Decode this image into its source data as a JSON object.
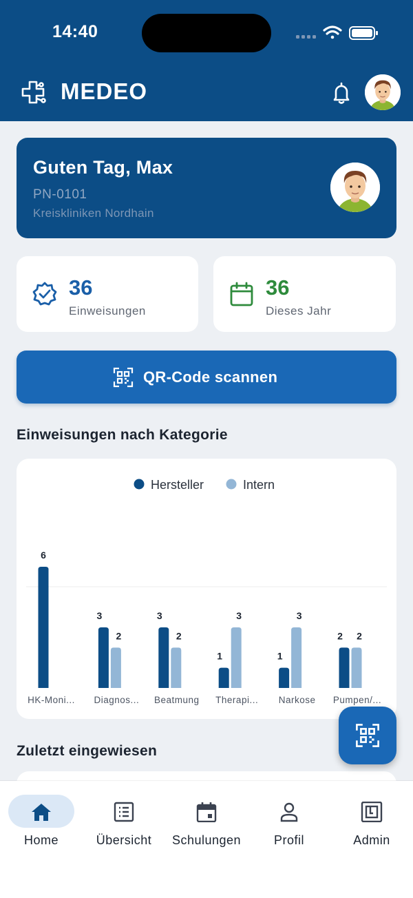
{
  "status_bar": {
    "time": "14:40"
  },
  "app": {
    "title": "MEDEO"
  },
  "greeting": {
    "title": "Guten Tag, Max",
    "person_id": "PN-0101",
    "organization": "Kreiskliniken Nordhain"
  },
  "stats": [
    {
      "value": "36",
      "label": "Einweisungen",
      "icon": "badge-check-icon",
      "color": "#1a5fa8"
    },
    {
      "value": "36",
      "label": "Dieses Jahr",
      "icon": "calendar-icon",
      "color": "#2e8b3c"
    }
  ],
  "qr_button": {
    "label": "QR-Code scannen"
  },
  "sections": {
    "chart_title": "Einweisungen nach Kategorie",
    "recent_title": "Zuletzt eingewiesen"
  },
  "chart_data": {
    "type": "bar",
    "categories": [
      "HK-Moni...",
      "Diagnos...",
      "Beatmung",
      "Therapi...",
      "Narkose",
      "Pumpen/..."
    ],
    "series": [
      {
        "name": "Hersteller",
        "color": "#0c4d86",
        "values": [
          6,
          3,
          3,
          1,
          1,
          2
        ]
      },
      {
        "name": "Intern",
        "color": "#93b6d6",
        "values": [
          0,
          2,
          2,
          3,
          3,
          2
        ]
      }
    ],
    "ylim": [
      0,
      6
    ],
    "grid": true,
    "legend": "top-center"
  },
  "tabs": [
    {
      "label": "Home",
      "icon": "home-icon",
      "active": true
    },
    {
      "label": "Übersicht",
      "icon": "list-icon",
      "active": false
    },
    {
      "label": "Schulungen",
      "icon": "calendar-icon",
      "active": false
    },
    {
      "label": "Profil",
      "icon": "user-icon",
      "active": false
    },
    {
      "label": "Admin",
      "icon": "admin-icon",
      "active": false
    }
  ]
}
